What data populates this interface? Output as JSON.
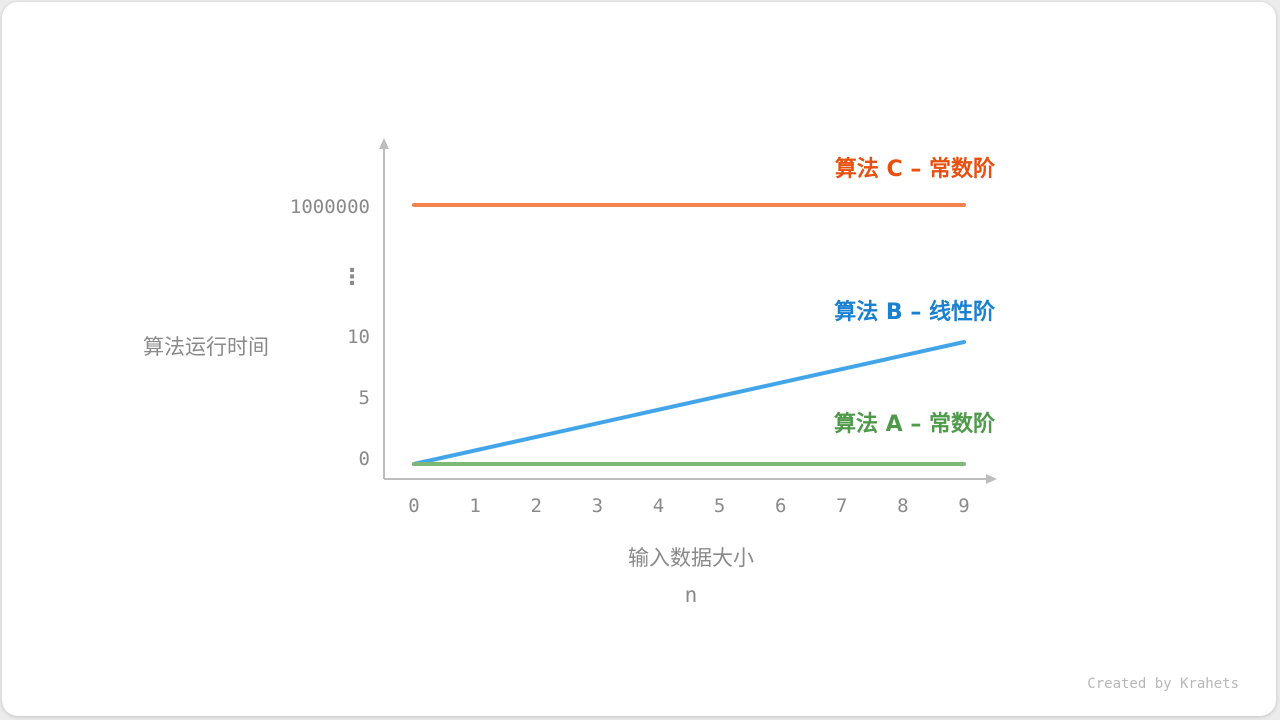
{
  "chart_data": {
    "type": "line",
    "xlabel": "输入数据大小",
    "xlabel_sub": "n",
    "ylabel": "算法运行时间",
    "x_ticks": [
      "0",
      "1",
      "2",
      "3",
      "4",
      "5",
      "6",
      "7",
      "8",
      "9"
    ],
    "y_ticks": [
      "0",
      "5",
      "10",
      "1000000"
    ],
    "y_break_symbol": "⋮",
    "y_axis_broken": true,
    "grid": false,
    "series": [
      {
        "name": "算法 C – 常数阶",
        "color": "#f5814f",
        "label_color": "#e8500f",
        "x": [
          0,
          9
        ],
        "y": [
          1000000,
          1000000
        ]
      },
      {
        "name": "算法 B – 线性阶",
        "color": "#42a5ea",
        "label_color": "#1a80d0",
        "x": [
          0,
          9
        ],
        "y": [
          0,
          10
        ]
      },
      {
        "name": "算法 A – 常数阶",
        "color": "#7cb874",
        "label_color": "#4e9a4a",
        "x": [
          0,
          9
        ],
        "y": [
          0,
          0
        ]
      }
    ]
  },
  "credit": "Created by Krahets"
}
